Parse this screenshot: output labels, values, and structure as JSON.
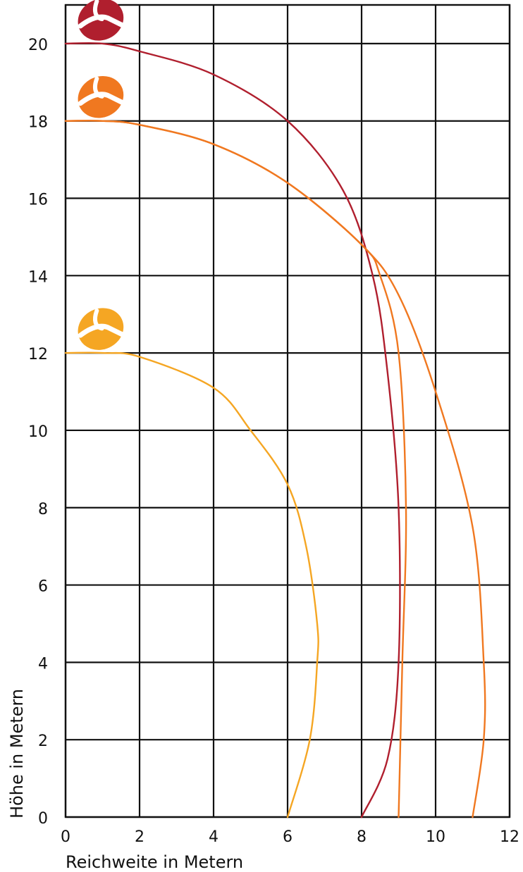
{
  "chart_data": {
    "type": "line",
    "xlabel": "Reichweite in Metern",
    "ylabel": "Höhe in Metern",
    "xlim": [
      0,
      12
    ],
    "ylim": [
      0,
      21
    ],
    "x_ticks": [
      "0",
      "2",
      "4",
      "6",
      "8",
      "10",
      "12"
    ],
    "y_ticks": [
      "0",
      "2",
      "4",
      "6",
      "8",
      "10",
      "12",
      "14",
      "16",
      "18",
      "20"
    ],
    "grid": true,
    "legend": "none",
    "series": [
      {
        "color": "#b01f2e",
        "marker_icon": "logo-icon",
        "points": [
          [
            0,
            20.0
          ],
          [
            1,
            20.0
          ],
          [
            2,
            19.8
          ],
          [
            4,
            19.2
          ],
          [
            6,
            18.0
          ],
          [
            7.5,
            16.2
          ],
          [
            8.3,
            14.0
          ],
          [
            8.7,
            11.5
          ],
          [
            9.0,
            8.0
          ],
          [
            9.0,
            4.0
          ],
          [
            8.7,
            1.5
          ],
          [
            8.0,
            0
          ]
        ]
      },
      {
        "color": "#f07820",
        "marker_icon": "logo-icon",
        "points": [
          [
            0,
            18.0
          ],
          [
            1,
            18.0
          ],
          [
            2,
            17.9
          ],
          [
            4,
            17.4
          ],
          [
            6,
            16.4
          ],
          [
            8,
            14.8
          ],
          [
            8.5,
            14.0
          ],
          [
            9.0,
            12.0
          ],
          [
            9.2,
            8.0
          ],
          [
            9.1,
            4.0
          ],
          [
            9.0,
            0
          ]
        ]
      },
      {
        "color": "#f07820",
        "marker_icon": "logo-icon",
        "points": [
          [
            0,
            18.0
          ],
          [
            1,
            18.0
          ],
          [
            2,
            17.9
          ],
          [
            4,
            17.4
          ],
          [
            6,
            16.4
          ],
          [
            8,
            14.8
          ],
          [
            9,
            13.5
          ],
          [
            10,
            11.0
          ],
          [
            11,
            7.5
          ],
          [
            11.3,
            4.0
          ],
          [
            11.3,
            2.0
          ],
          [
            11.0,
            0
          ]
        ]
      },
      {
        "color": "#f5a623",
        "marker_icon": "logo-icon",
        "points": [
          [
            0,
            12.0
          ],
          [
            1,
            12.0
          ],
          [
            2,
            11.9
          ],
          [
            4,
            11.1
          ],
          [
            5,
            10.0
          ],
          [
            6,
            8.6
          ],
          [
            6.5,
            7.0
          ],
          [
            6.8,
            5.0
          ],
          [
            6.8,
            4.0
          ],
          [
            6.6,
            2.0
          ],
          [
            6.0,
            0
          ]
        ]
      }
    ]
  }
}
